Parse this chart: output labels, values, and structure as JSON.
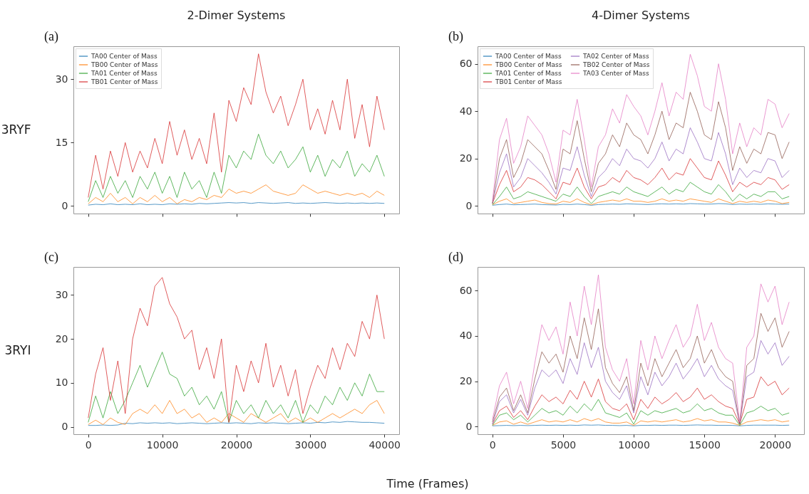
{
  "chart_data": [
    {
      "type": "line",
      "title": "2-Dimer Systems",
      "subtitle": "(a)",
      "ylabel": "3RYF",
      "legend": "top left",
      "tick_labels": "y",
      "xlim": [
        -2000,
        42000
      ],
      "xticks": [
        0,
        10000,
        20000,
        30000,
        40000
      ],
      "ylim": [
        -1.8,
        37.8
      ],
      "yticks": [
        0,
        15,
        30
      ],
      "x": [
        0,
        1000,
        2000,
        3000,
        4000,
        5000,
        6000,
        7000,
        8000,
        9000,
        10000,
        11000,
        12000,
        13000,
        14000,
        15000,
        16000,
        17000,
        18000,
        19000,
        20000,
        21000,
        22000,
        23000,
        24000,
        25000,
        26000,
        27000,
        28000,
        29000,
        30000,
        31000,
        32000,
        33000,
        34000,
        35000,
        36000,
        37000,
        38000,
        39000,
        40000
      ],
      "series": [
        {
          "name": "TA00 Center of Mass",
          "color": "#1f77b4",
          "values": [
            0.2,
            0.4,
            0.3,
            0.5,
            0.3,
            0.4,
            0.3,
            0.5,
            0.3,
            0.4,
            0.3,
            0.5,
            0.4,
            0.5,
            0.4,
            0.6,
            0.5,
            0.6,
            0.7,
            0.8,
            0.7,
            0.8,
            0.6,
            0.8,
            0.7,
            0.6,
            0.7,
            0.8,
            0.6,
            0.7,
            0.6,
            0.7,
            0.8,
            0.7,
            0.6,
            0.7,
            0.6,
            0.7,
            0.6,
            0.7,
            0.6
          ]
        },
        {
          "name": "TB00 Center of Mass",
          "color": "#ff7f0e",
          "values": [
            0.5,
            2,
            1,
            3,
            1,
            2,
            0.5,
            2,
            1,
            2.5,
            1,
            2,
            0.5,
            1.5,
            1,
            2,
            1.5,
            2.5,
            2,
            4,
            3,
            3.5,
            3,
            4,
            5,
            3.5,
            3,
            2.5,
            3,
            5,
            4,
            3,
            3.5,
            3,
            2.5,
            3,
            2.5,
            3,
            2,
            3.5,
            2.5
          ]
        },
        {
          "name": "TA01 Center of Mass",
          "color": "#2ca02c",
          "values": [
            1,
            6,
            2,
            7,
            3,
            6,
            2,
            7,
            4,
            8,
            3,
            7,
            2,
            8,
            4,
            6,
            2,
            8,
            3,
            12,
            9,
            13,
            11,
            17,
            12,
            10,
            13,
            9,
            11,
            14,
            8,
            12,
            7,
            11,
            9,
            13,
            7,
            10,
            8,
            12,
            7
          ]
        },
        {
          "name": "TB01 Center of Mass",
          "color": "#d62728",
          "values": [
            2,
            12,
            4,
            13,
            7,
            15,
            8,
            13,
            9,
            16,
            10,
            20,
            12,
            18,
            11,
            16,
            10,
            22,
            8,
            25,
            20,
            28,
            24,
            36,
            27,
            22,
            26,
            19,
            24,
            30,
            18,
            23,
            17,
            25,
            18,
            30,
            16,
            24,
            14,
            26,
            18
          ]
        }
      ]
    },
    {
      "type": "line",
      "title": "4-Dimer Systems",
      "subtitle": "(b)",
      "legend": "top left",
      "tick_labels": "y",
      "xlim": [
        -1050,
        22050
      ],
      "xticks": [
        0,
        5000,
        10000,
        15000,
        20000
      ],
      "ylim": [
        -3.2,
        67.4
      ],
      "yticks": [
        0,
        20,
        40,
        60
      ],
      "x": [
        0,
        500,
        1000,
        1500,
        2000,
        2500,
        3000,
        3500,
        4000,
        4500,
        5000,
        5500,
        6000,
        6500,
        7000,
        7500,
        8000,
        8500,
        9000,
        9500,
        10000,
        10500,
        11000,
        11500,
        12000,
        12500,
        13000,
        13500,
        14000,
        14500,
        15000,
        15500,
        16000,
        16500,
        17000,
        17500,
        18000,
        18500,
        19000,
        19500,
        20000,
        20500,
        21000
      ],
      "series": [
        {
          "name": "TA00 Center of Mass",
          "color": "#1f77b4",
          "values": [
            0.3,
            0.6,
            0.8,
            0.5,
            0.6,
            0.7,
            0.8,
            0.6,
            0.5,
            0.4,
            0.7,
            0.6,
            0.8,
            0.6,
            0.3,
            0.6,
            0.7,
            0.8,
            0.7,
            0.9,
            0.8,
            0.7,
            0.6,
            0.8,
            0.9,
            0.8,
            0.9,
            0.8,
            1,
            0.9,
            0.8,
            0.8,
            1,
            0.9,
            0.6,
            0.8,
            0.7,
            0.8,
            0.7,
            0.9,
            0.8,
            0.7,
            0.8
          ]
        },
        {
          "name": "TB00 Center of Mass",
          "color": "#ff7f0e",
          "values": [
            0.5,
            2,
            3,
            1,
            1.5,
            2,
            2.5,
            1.5,
            1,
            0.8,
            2,
            1.5,
            3,
            1.5,
            0.5,
            1.5,
            2,
            2.5,
            2,
            3,
            2,
            2,
            1.5,
            2,
            3,
            2,
            2.5,
            2,
            3,
            2.5,
            2,
            1.5,
            3,
            2,
            1,
            2,
            1.5,
            2,
            1.5,
            2.5,
            2,
            1,
            1.5
          ]
        },
        {
          "name": "TA01 Center of Mass",
          "color": "#2ca02c",
          "values": [
            0.5,
            4,
            8,
            3,
            4,
            6,
            5,
            4,
            3,
            2,
            5,
            4,
            8,
            4,
            1,
            4,
            5,
            6,
            5,
            8,
            6,
            5,
            4,
            6,
            8,
            5,
            7,
            6,
            10,
            8,
            6,
            5,
            9,
            6,
            2,
            5,
            3,
            5,
            4,
            6,
            6,
            3,
            4
          ]
        },
        {
          "name": "TB01 Center of Mass",
          "color": "#d62728",
          "values": [
            1,
            9,
            15,
            6,
            8,
            12,
            11,
            9,
            6,
            3,
            10,
            9,
            16,
            8,
            3,
            8,
            9,
            12,
            10,
            15,
            12,
            11,
            9,
            12,
            16,
            11,
            14,
            13,
            20,
            16,
            12,
            11,
            19,
            13,
            6,
            10,
            8,
            10,
            9,
            12,
            11,
            7,
            9
          ]
        },
        {
          "name": "TA02 Center of Mass",
          "color": "#9467bd",
          "values": [
            1,
            14,
            22,
            8,
            12,
            20,
            17,
            14,
            10,
            5,
            16,
            15,
            25,
            13,
            4,
            12,
            15,
            20,
            17,
            24,
            20,
            19,
            16,
            20,
            27,
            19,
            24,
            22,
            33,
            27,
            20,
            19,
            31,
            22,
            9,
            16,
            12,
            15,
            14,
            20,
            19,
            12,
            15
          ]
        },
        {
          "name": "TB02 Center of Mass",
          "color": "#8c564b",
          "values": [
            1,
            20,
            28,
            12,
            18,
            28,
            25,
            22,
            15,
            7,
            24,
            22,
            36,
            20,
            6,
            18,
            22,
            30,
            25,
            35,
            30,
            28,
            22,
            30,
            40,
            28,
            35,
            33,
            48,
            40,
            30,
            28,
            44,
            33,
            15,
            25,
            18,
            24,
            22,
            31,
            30,
            20,
            27
          ]
        },
        {
          "name": "TA03 Center of Mass",
          "color": "#e377c2",
          "values": [
            2,
            28,
            37,
            18,
            25,
            38,
            34,
            30,
            22,
            10,
            32,
            30,
            45,
            28,
            8,
            25,
            30,
            41,
            35,
            47,
            42,
            38,
            30,
            40,
            52,
            38,
            48,
            45,
            64,
            55,
            42,
            40,
            60,
            45,
            22,
            35,
            25,
            33,
            30,
            45,
            43,
            33,
            39
          ]
        }
      ]
    },
    {
      "type": "line",
      "title": "(c)",
      "ylabel": "3RYI",
      "xlabel": "Time (Frames)",
      "xlim": [
        -2000,
        42000
      ],
      "xticks": [
        0,
        10000,
        20000,
        30000,
        40000
      ],
      "ylim": [
        -1.7,
        36.4
      ],
      "yticks": [
        0,
        10,
        20,
        30
      ],
      "x": [
        0,
        1000,
        2000,
        3000,
        4000,
        5000,
        6000,
        7000,
        8000,
        9000,
        10000,
        11000,
        12000,
        13000,
        14000,
        15000,
        16000,
        17000,
        18000,
        19000,
        20000,
        21000,
        22000,
        23000,
        24000,
        25000,
        26000,
        27000,
        28000,
        29000,
        30000,
        31000,
        32000,
        33000,
        34000,
        35000,
        36000,
        37000,
        38000,
        39000,
        40000
      ],
      "series": [
        {
          "color": "#1f77b4",
          "values": [
            0.3,
            0.3,
            0.4,
            0.3,
            0.4,
            0.8,
            0.7,
            0.9,
            0.8,
            0.9,
            0.8,
            0.9,
            0.7,
            0.8,
            0.9,
            0.8,
            0.7,
            0.8,
            0.9,
            0.8,
            0.9,
            0.8,
            0.7,
            0.9,
            0.8,
            0.9,
            0.8,
            0.7,
            0.8,
            0.9,
            0.8,
            1,
            0.9,
            1.1,
            1,
            1.2,
            1.1,
            1,
            1,
            0.9,
            0.8
          ]
        },
        {
          "color": "#ff7f0e",
          "values": [
            0.5,
            1.5,
            0.5,
            2,
            1,
            0.5,
            3,
            4,
            3,
            5,
            3,
            6,
            3,
            4,
            2,
            3,
            1,
            2,
            1,
            3,
            2,
            1,
            3,
            2,
            1,
            2,
            3,
            1,
            2,
            1,
            2,
            1,
            2,
            3,
            2,
            3,
            4,
            3,
            5,
            6,
            3
          ]
        },
        {
          "color": "#2ca02c",
          "values": [
            1,
            7,
            2,
            8,
            3,
            6,
            10,
            14,
            9,
            13,
            17,
            12,
            11,
            7,
            9,
            5,
            7,
            4,
            8,
            1,
            6,
            3,
            5,
            2,
            6,
            3,
            5,
            2,
            6,
            1,
            5,
            3,
            7,
            5,
            9,
            6,
            10,
            7,
            12,
            8,
            8
          ]
        },
        {
          "color": "#d62728",
          "values": [
            2,
            12,
            18,
            6,
            15,
            3,
            20,
            27,
            23,
            32,
            34,
            28,
            25,
            20,
            22,
            13,
            18,
            11,
            20,
            1,
            14,
            8,
            15,
            10,
            19,
            9,
            14,
            7,
            13,
            3,
            9,
            14,
            11,
            18,
            13,
            19,
            16,
            24,
            20,
            30,
            20
          ]
        }
      ]
    },
    {
      "type": "line",
      "title": "(d)",
      "xlim": [
        -1050,
        22050
      ],
      "xticks": [
        0,
        5000,
        10000,
        15000,
        20000
      ],
      "ylim": [
        -3.4,
        70.5
      ],
      "yticks": [
        0,
        20,
        40,
        60
      ],
      "x": [
        0,
        500,
        1000,
        1500,
        2000,
        2500,
        3000,
        3500,
        4000,
        4500,
        5000,
        5500,
        6000,
        6500,
        7000,
        7500,
        8000,
        8500,
        9000,
        9500,
        10000,
        10500,
        11000,
        11500,
        12000,
        12500,
        13000,
        13500,
        14000,
        14500,
        15000,
        15500,
        16000,
        16500,
        17000,
        17500,
        18000,
        18500,
        19000,
        19500,
        20000,
        20500,
        21000
      ],
      "series": [
        {
          "color": "#1f77b4",
          "values": [
            0.3,
            0.4,
            0.5,
            0.4,
            0.5,
            0.4,
            0.5,
            0.6,
            0.5,
            0.6,
            0.5,
            0.6,
            0.5,
            0.7,
            0.6,
            0.7,
            0.5,
            0.5,
            0.4,
            0.5,
            0.3,
            0.5,
            0.5,
            0.6,
            0.5,
            0.6,
            0.6,
            0.5,
            0.6,
            0.7,
            0.6,
            0.6,
            0.5,
            0.5,
            0.5,
            0.3,
            0.5,
            0.6,
            0.6,
            0.6,
            0.6,
            0.5,
            0.6
          ]
        },
        {
          "color": "#ff7f0e",
          "values": [
            0.5,
            2,
            2.5,
            1,
            2,
            1,
            2,
            3,
            2,
            2.5,
            2,
            3,
            2,
            3.5,
            2.5,
            3.5,
            2,
            1.5,
            1.5,
            2,
            0.5,
            2.5,
            2,
            2.5,
            2,
            2.5,
            3,
            2,
            2.5,
            3.5,
            2.5,
            3,
            2,
            2,
            1.5,
            0.5,
            2,
            2.5,
            3,
            2.5,
            3,
            2,
            2.5
          ]
        },
        {
          "color": "#2ca02c",
          "values": [
            0.5,
            5,
            6,
            3,
            5,
            2,
            5,
            8,
            6,
            7,
            5,
            9,
            6,
            10,
            7,
            12,
            6,
            5,
            4,
            6,
            1,
            7,
            5,
            7,
            6,
            7,
            8,
            6,
            7,
            10,
            7,
            8,
            6,
            5,
            5,
            0.5,
            6,
            7,
            9,
            7,
            8,
            5,
            6
          ]
        },
        {
          "color": "#d62728",
          "values": [
            1,
            7,
            9,
            4,
            7,
            3,
            9,
            14,
            11,
            13,
            10,
            16,
            12,
            20,
            13,
            21,
            11,
            8,
            7,
            10,
            3,
            12,
            8,
            13,
            10,
            12,
            15,
            11,
            13,
            17,
            12,
            14,
            11,
            9,
            8,
            1,
            12,
            13,
            22,
            18,
            20,
            14,
            17
          ]
        },
        {
          "color": "#9467bd",
          "values": [
            1,
            11,
            14,
            6,
            12,
            5,
            17,
            25,
            22,
            25,
            19,
            30,
            23,
            37,
            26,
            35,
            20,
            15,
            12,
            18,
            6,
            22,
            14,
            24,
            18,
            22,
            28,
            21,
            25,
            30,
            22,
            27,
            21,
            18,
            16,
            1,
            22,
            24,
            38,
            32,
            37,
            27,
            31
          ]
        },
        {
          "color": "#8c564b",
          "values": [
            2,
            13,
            17,
            7,
            14,
            6,
            21,
            33,
            28,
            32,
            24,
            40,
            30,
            48,
            34,
            52,
            26,
            19,
            15,
            22,
            7,
            28,
            18,
            30,
            22,
            28,
            34,
            26,
            30,
            40,
            28,
            34,
            26,
            22,
            20,
            1,
            27,
            30,
            50,
            42,
            48,
            35,
            42
          ]
        },
        {
          "color": "#e377c2",
          "values": [
            3,
            18,
            24,
            10,
            20,
            8,
            28,
            45,
            38,
            44,
            32,
            55,
            40,
            62,
            45,
            67,
            35,
            25,
            20,
            30,
            10,
            38,
            25,
            40,
            30,
            38,
            45,
            35,
            40,
            54,
            38,
            46,
            35,
            30,
            28,
            2,
            35,
            40,
            63,
            55,
            62,
            45,
            55
          ]
        }
      ]
    }
  ]
}
